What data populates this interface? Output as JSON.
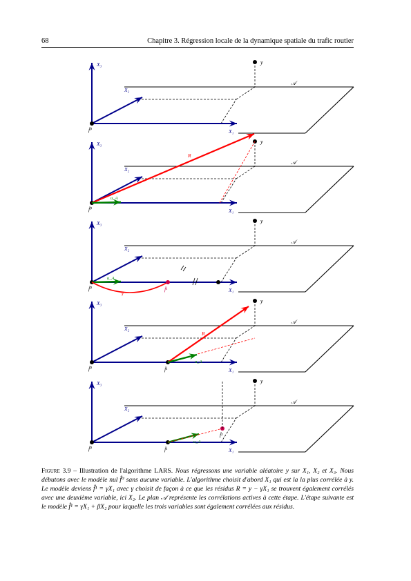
{
  "header": {
    "page_number": "68",
    "running_title": "Chapitre 3.  Régression locale de la dynamique spatiale du trafic routier"
  },
  "figure": {
    "labels": {
      "X1": "X₁",
      "X2": "X₂",
      "X3": "X₃",
      "y": "y",
      "plane": "𝒜",
      "f0": "f̂⁰",
      "f1": "f̂¹",
      "f2": "f̂²",
      "R": "R",
      "gamma": "γ",
      "u": "u_A"
    },
    "colors": {
      "axes": "#00008b",
      "residual": "#ff0000",
      "step": "#008000",
      "estimate": "#c8004b",
      "plane": "#000000",
      "guides": "#000000"
    }
  },
  "caption": {
    "label": "Figure 3.9",
    "lead": " – Illustration de l'algorithme LARS. ",
    "body": "Nous régressons une variable aléatoire y sur X₁, X₂ et X₃. Nous débutons avec le modèle nul f̂⁰ sans aucune variable. L'algorithme choisit d'abord X₁ qui est la la plus corrélée à y. Le modèle deviens f̂¹ = γX₁ avec γ choisit de façon à ce que les résidus R = y − γX₁ se trouvent également corrélés avec une deuxième variable, ici X₂. Le plan 𝒜 représente les corrélations actives à cette étape. L'étape suivante est le modèle f̂¹ = γX₁ + βX₂ pour laquelle les trois variables sont également corrélées aux résidus."
  }
}
